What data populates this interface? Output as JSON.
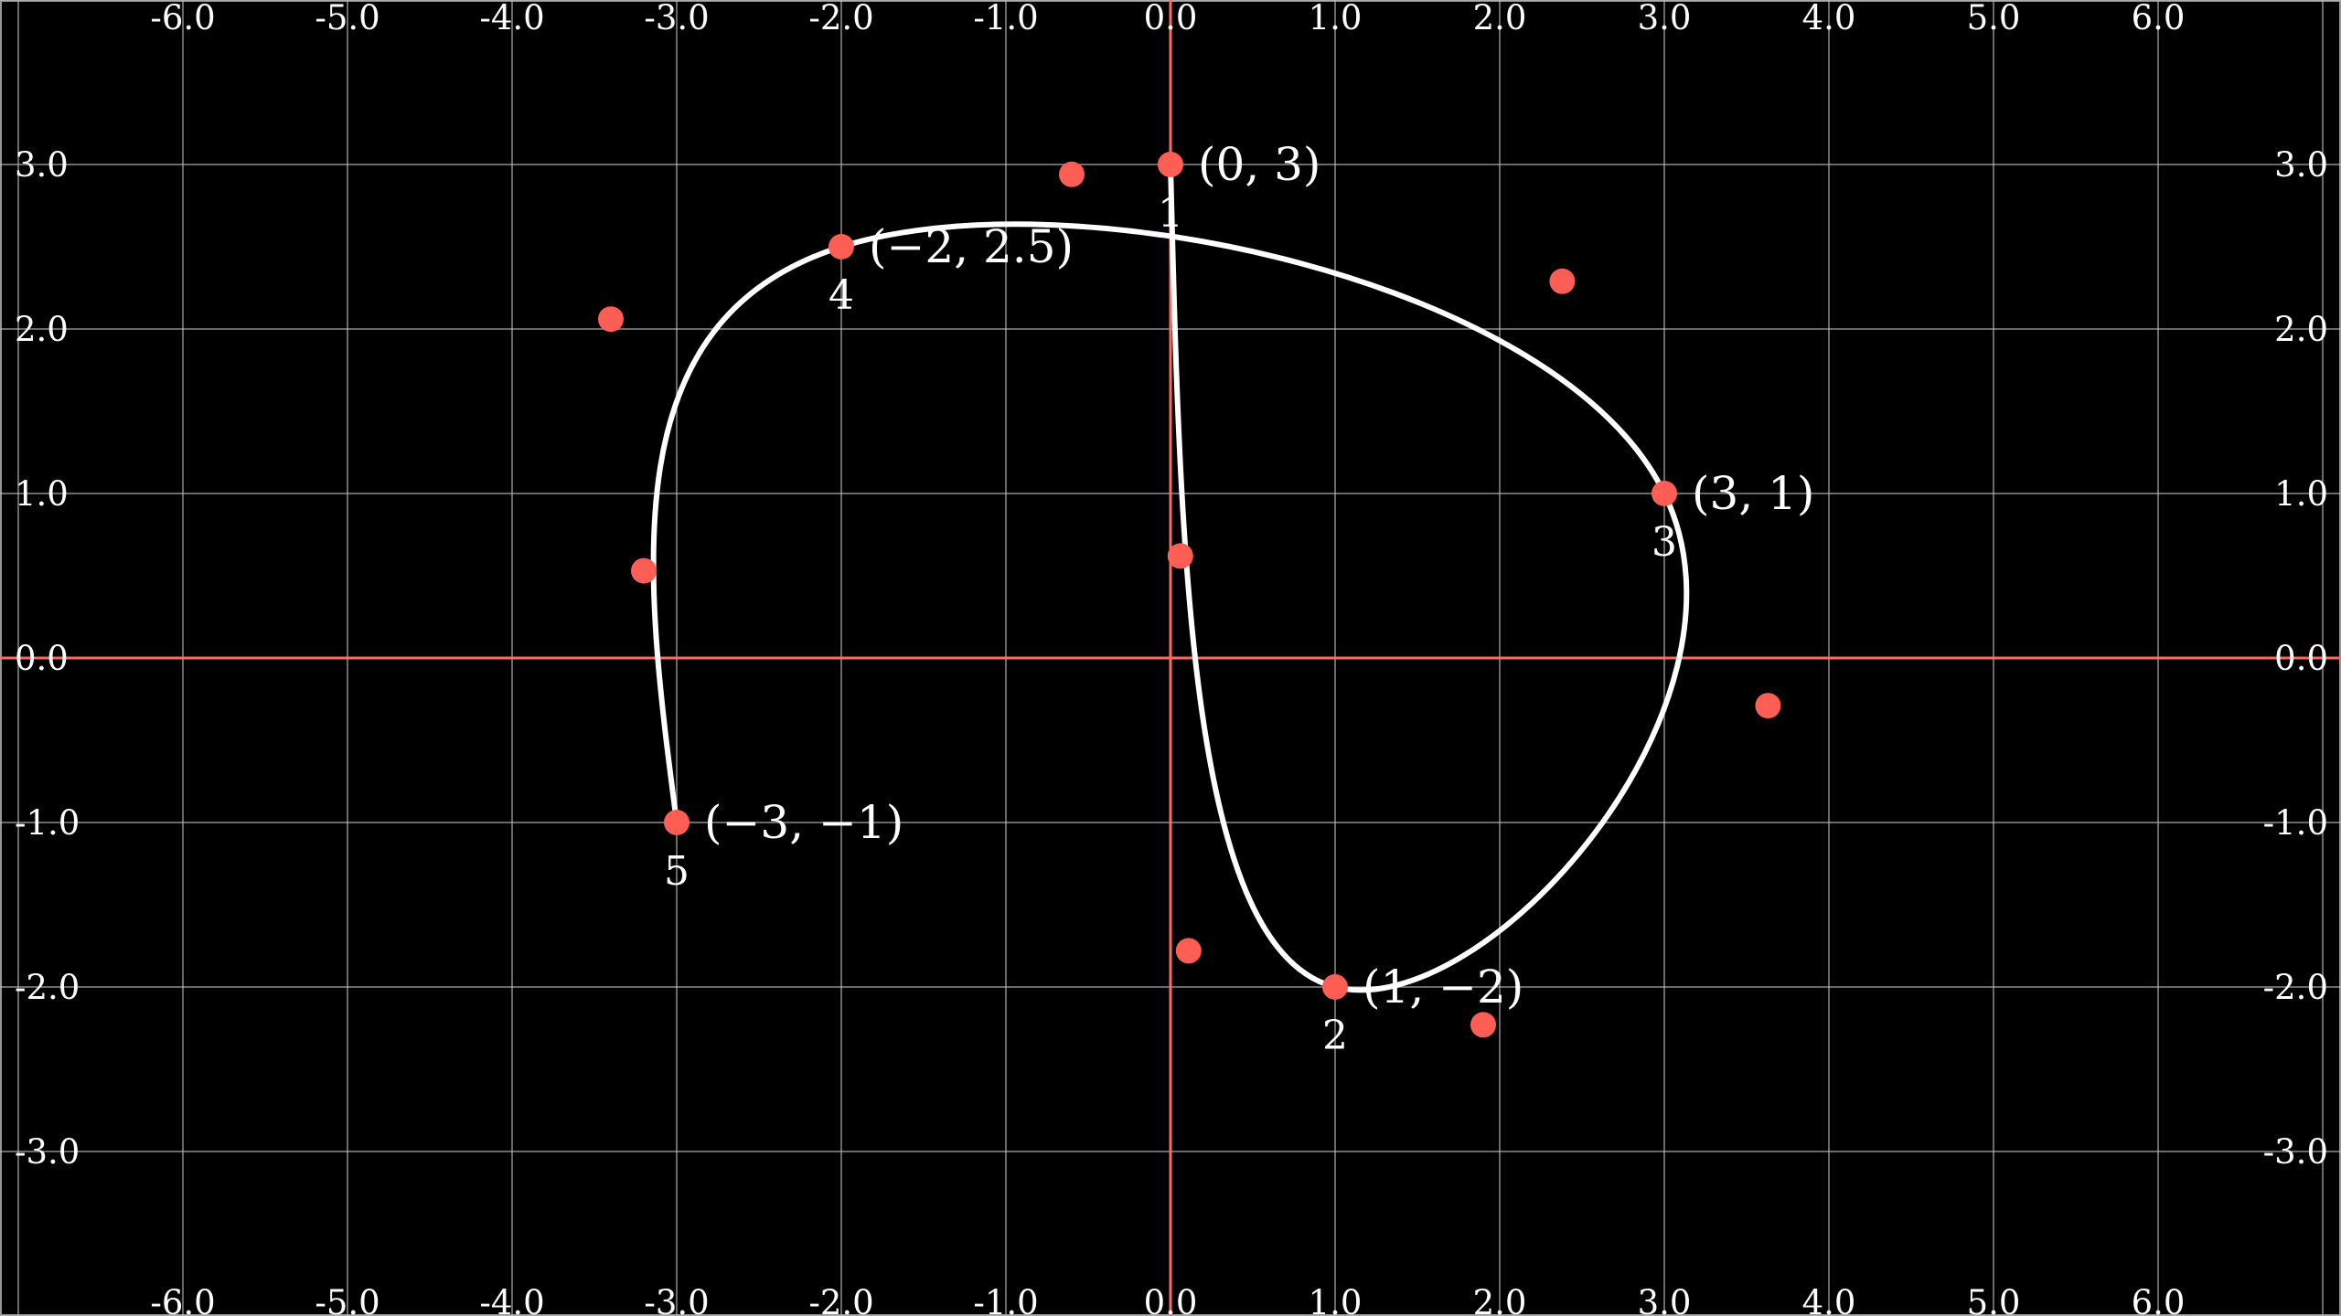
{
  "colors": {
    "background": "#000000",
    "grid": "#bdbdbd",
    "axis": "#ff6b5e",
    "curve": "#ffffff",
    "point": "#ff5e55",
    "text": "#ffffff"
  },
  "chart_data": {
    "type": "scatter",
    "xlim": [
      -7.1,
      7.1
    ],
    "ylim": [
      -4,
      4
    ],
    "grid": true,
    "x_ticks": [
      "-6.0",
      "-5.0",
      "-4.0",
      "-3.0",
      "-2.0",
      "-1.0",
      "0.0",
      "1.0",
      "2.0",
      "3.0",
      "4.0",
      "5.0",
      "6.0"
    ],
    "y_ticks": [
      "3.0",
      "2.0",
      "1.0",
      "0.0",
      "-1.0",
      "-2.0",
      "-3.0"
    ],
    "anchor_points": [
      {
        "index": "1",
        "x": 0,
        "y": 3,
        "label": "(0, 3)"
      },
      {
        "index": "2",
        "x": 1,
        "y": -2,
        "label": "(1, −2)"
      },
      {
        "index": "3",
        "x": 3,
        "y": 1,
        "label": "(3, 1)"
      },
      {
        "index": "4",
        "x": -2,
        "y": 2.5,
        "label": "(−2, 2.5)"
      },
      {
        "index": "5",
        "x": -3,
        "y": -1,
        "label": "(−3, −1)"
      }
    ],
    "control_points": [
      {
        "x": 0.06,
        "y": 0.62
      },
      {
        "x": 0.11,
        "y": -1.78
      },
      {
        "x": 1.9,
        "y": -2.23
      },
      {
        "x": 3.63,
        "y": -0.29
      },
      {
        "x": 2.38,
        "y": 2.29
      },
      {
        "x": -0.6,
        "y": 2.94
      },
      {
        "x": -3.4,
        "y": 2.06
      },
      {
        "x": -3.2,
        "y": 0.53
      }
    ],
    "curve_segments": [
      {
        "from": [
          0,
          3
        ],
        "c1": [
          0.06,
          0.62
        ],
        "c2": [
          0.11,
          -1.78
        ],
        "to": [
          1,
          -2
        ]
      },
      {
        "from": [
          1,
          -2
        ],
        "c1": [
          1.9,
          -2.23
        ],
        "c2": [
          3.63,
          -0.29
        ],
        "to": [
          3,
          1
        ]
      },
      {
        "from": [
          3,
          1
        ],
        "c1": [
          2.38,
          2.29
        ],
        "c2": [
          -0.6,
          2.94
        ],
        "to": [
          -2,
          2.5
        ]
      },
      {
        "from": [
          -2,
          2.5
        ],
        "c1": [
          -3.4,
          2.06
        ],
        "c2": [
          -3.2,
          0.53
        ],
        "to": [
          -3,
          -1
        ]
      }
    ]
  }
}
